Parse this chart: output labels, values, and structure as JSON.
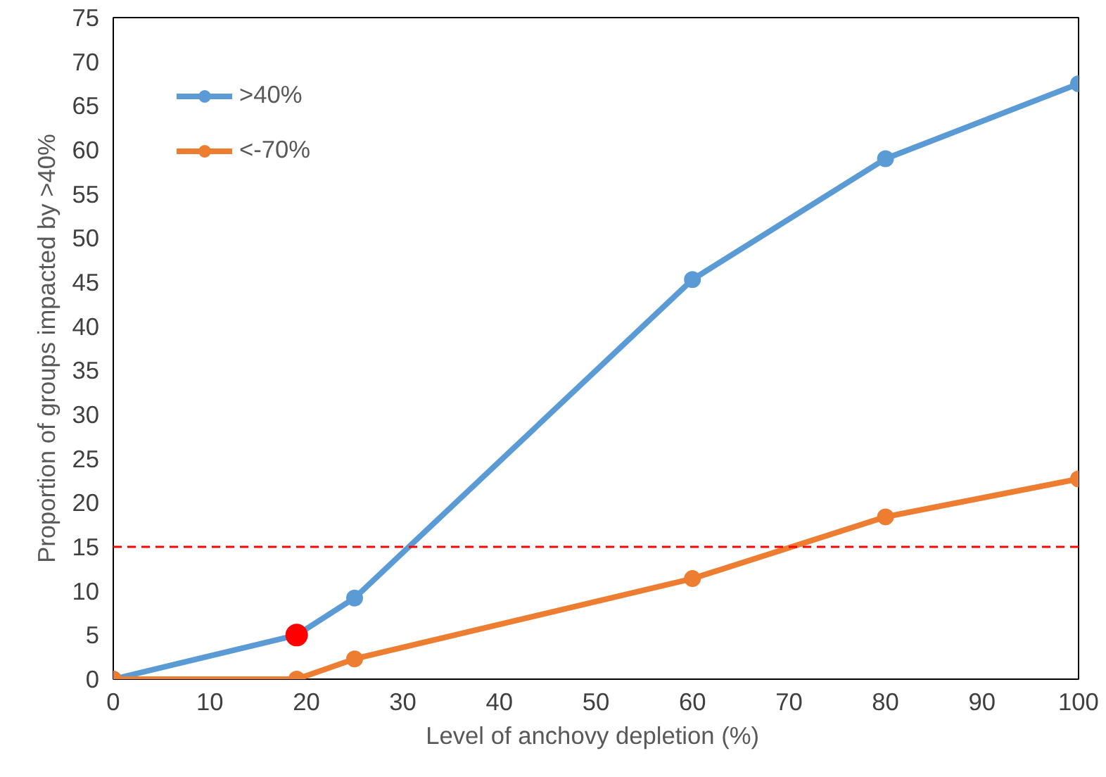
{
  "chart_data": {
    "type": "line",
    "xlabel": "Level  of anchovy depletion (%)",
    "ylabel": "Proportion of groups impacted by >40%",
    "xlim": [
      0,
      100
    ],
    "xticks": [
      0,
      10,
      20,
      30,
      40,
      50,
      60,
      70,
      80,
      90,
      100
    ],
    "ylim": [
      0,
      75
    ],
    "yticks": [
      0,
      5,
      10,
      15,
      20,
      25,
      30,
      35,
      40,
      45,
      50,
      55,
      60,
      65,
      70,
      75
    ],
    "grid": false,
    "legend": "top left",
    "marker": "circle",
    "line_style": "solid",
    "series": [
      {
        "name": ">40%",
        "color": "#5b9bd5",
        "x": [
          0,
          19,
          25,
          60,
          80,
          100
        ],
        "values": [
          0,
          5,
          9.2,
          45.3,
          59,
          67.5
        ]
      },
      {
        "name": "<-70%",
        "color": "#ed7d31",
        "x": [
          0,
          19,
          25,
          60,
          80,
          100
        ],
        "values": [
          0,
          0,
          2.3,
          11.4,
          18.4,
          22.7
        ]
      },
      {
        "type": "scatter",
        "color": "#ff0000",
        "x": [
          19
        ],
        "values": [
          5
        ]
      }
    ],
    "ref_lines": [
      {
        "axis": "y",
        "value": 15,
        "color": "#ff0000",
        "line_style": "dashed"
      }
    ]
  }
}
